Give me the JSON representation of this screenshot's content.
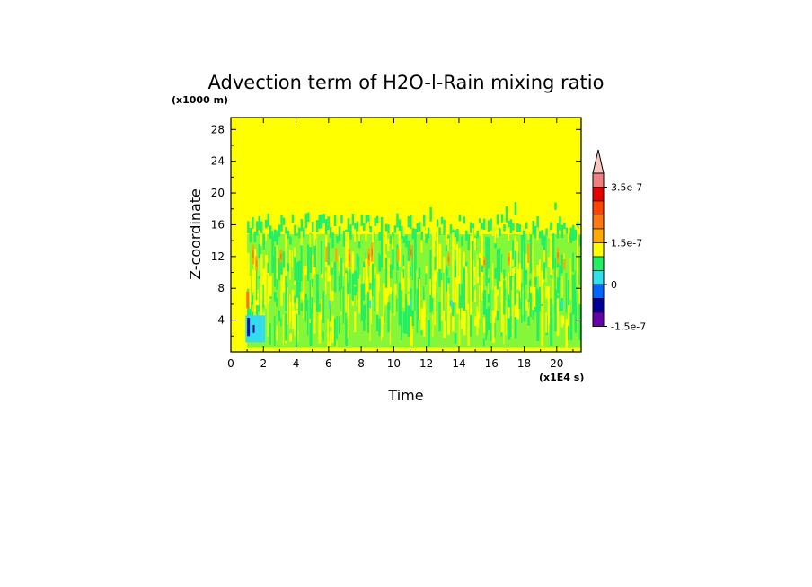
{
  "chart_data": {
    "type": "heatmap",
    "title": "Advection term of H2O-l-Rain mixing ratio",
    "xlabel": "Time",
    "ylabel": "Z-coordinate",
    "x_unit": "(x1E4 s)",
    "y_unit": "(x1000 m)",
    "xlim": [
      0,
      21.5
    ],
    "ylim": [
      0,
      29.5
    ],
    "x_ticks": [
      "0",
      "2",
      "4",
      "6",
      "8",
      "10",
      "12",
      "14",
      "16",
      "18",
      "20"
    ],
    "x_tick_values": [
      0,
      2,
      4,
      6,
      8,
      10,
      12,
      14,
      16,
      18,
      20
    ],
    "y_ticks": [
      "4",
      "8",
      "12",
      "16",
      "20",
      "24",
      "28"
    ],
    "y_tick_values": [
      4,
      8,
      12,
      16,
      20,
      24,
      28
    ],
    "background_level_color": "#ffff00",
    "field_regions": {
      "mixed_layer_top": 16,
      "mixed_layer_bottom": 0.5,
      "overshoot_top": 17.5,
      "dominant_colors": [
        "#ffff00",
        "#22ee66",
        "#ffaa00",
        "#ff7711",
        "#33ddee",
        "#0011aa"
      ]
    },
    "colorbar": {
      "levels": [
        {
          "color": "#f5c5bf"
        },
        {
          "color": "#f08080"
        },
        {
          "color": "#e60000"
        },
        {
          "color": "#ff4400"
        },
        {
          "color": "#ff7711"
        },
        {
          "color": "#ffaa00"
        },
        {
          "color": "#ffff00"
        },
        {
          "color": "#22ee66"
        },
        {
          "color": "#33ddee"
        },
        {
          "color": "#0066ff"
        },
        {
          "color": "#000099"
        },
        {
          "color": "#6600aa"
        }
      ],
      "labels": [
        "3.5e-7",
        "1.5e-7",
        "0",
        "-1.5e-7"
      ]
    }
  }
}
